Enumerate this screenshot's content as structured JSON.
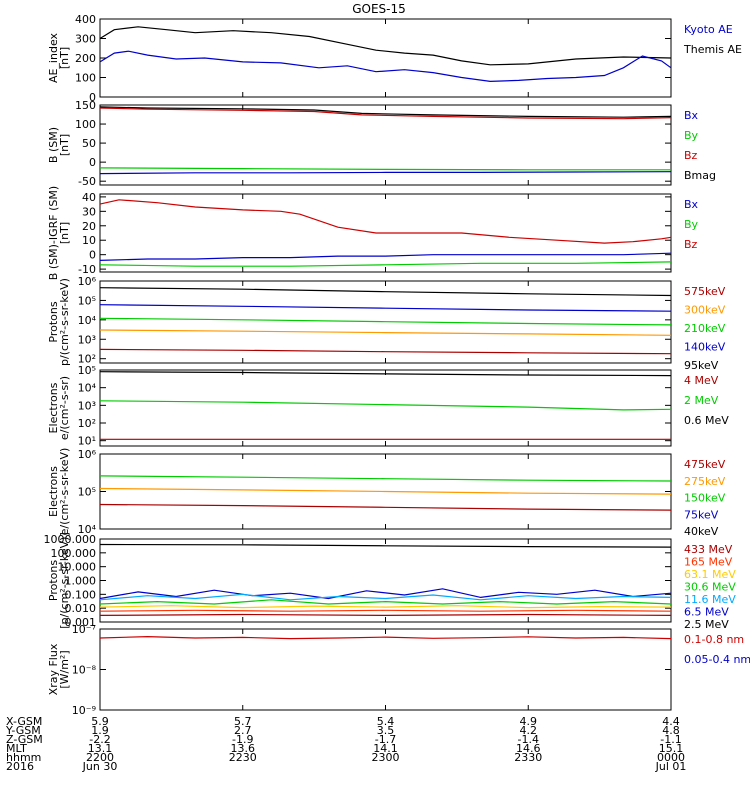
{
  "title": "GOES-15",
  "chart_data": [
    {
      "type": "line",
      "ylabel_lines": [
        "AE_index",
        "[nT]"
      ],
      "ylim": [
        0,
        400
      ],
      "yscale": "linear",
      "yticks": [
        0,
        100,
        200,
        300,
        400
      ],
      "ytick_labels": [
        "0",
        "100",
        "200",
        "300",
        "400"
      ],
      "legend": [
        {
          "label": "Kyoto AE",
          "color": "#0000cc"
        },
        {
          "label": "Themis AE",
          "color": "#000000"
        }
      ],
      "series": [
        {
          "name": "Themis AE",
          "color": "#000000",
          "x": [
            0,
            3,
            8,
            14,
            20,
            28,
            36,
            44,
            52,
            58,
            64,
            70,
            76,
            82,
            90,
            100,
            110,
            120
          ],
          "y": [
            300,
            345,
            360,
            345,
            330,
            340,
            330,
            310,
            270,
            240,
            225,
            215,
            185,
            165,
            170,
            195,
            205,
            200
          ]
        },
        {
          "name": "Kyoto AE",
          "color": "#0000cc",
          "x": [
            0,
            3,
            6,
            10,
            16,
            22,
            30,
            38,
            46,
            52,
            58,
            64,
            70,
            76,
            82,
            88,
            94,
            100,
            106,
            110,
            114,
            118,
            120
          ],
          "y": [
            180,
            225,
            235,
            215,
            195,
            200,
            180,
            175,
            150,
            160,
            130,
            140,
            125,
            100,
            80,
            85,
            95,
            100,
            110,
            150,
            210,
            185,
            150
          ]
        }
      ]
    },
    {
      "type": "line",
      "ylabel_lines": [
        "B (SM)",
        "[nT]"
      ],
      "ylim": [
        -60,
        150
      ],
      "yscale": "linear",
      "yticks": [
        -50,
        0,
        50,
        100,
        150
      ],
      "ytick_labels": [
        "-50",
        "0",
        "50",
        "100",
        "150"
      ],
      "legend": [
        {
          "label": "Bx",
          "color": "#0000cc"
        },
        {
          "label": "By",
          "color": "#00cc00"
        },
        {
          "label": "Bz",
          "color": "#cc0000"
        },
        {
          "label": "Bmag",
          "color": "#000000"
        }
      ],
      "series": [
        {
          "name": "Bmag",
          "color": "#000000",
          "x": [
            0,
            10,
            30,
            45,
            55,
            70,
            90,
            110,
            120
          ],
          "y": [
            145,
            142,
            140,
            137,
            128,
            124,
            120,
            118,
            120
          ]
        },
        {
          "name": "Bz",
          "color": "#cc0000",
          "x": [
            0,
            10,
            30,
            45,
            55,
            70,
            90,
            110,
            120
          ],
          "y": [
            142,
            139,
            136,
            133,
            124,
            120,
            116,
            114,
            117
          ]
        },
        {
          "name": "By",
          "color": "#00cc00",
          "x": [
            0,
            30,
            60,
            90,
            120
          ],
          "y": [
            -15,
            -17,
            -19,
            -20,
            -20
          ]
        },
        {
          "name": "Bx",
          "color": "#0000cc",
          "x": [
            0,
            20,
            40,
            60,
            80,
            100,
            120
          ],
          "y": [
            -30,
            -28,
            -28,
            -27,
            -27,
            -26,
            -25
          ]
        }
      ]
    },
    {
      "type": "line",
      "ylabel_lines": [
        "B (SM)-IGRF (SM)",
        "[nT]"
      ],
      "ylim": [
        -12,
        42
      ],
      "yscale": "linear",
      "yticks": [
        -10,
        0,
        10,
        20,
        30,
        40
      ],
      "ytick_labels": [
        "-10",
        "0",
        "10",
        "20",
        "30",
        "40"
      ],
      "legend": [
        {
          "label": "Bx",
          "color": "#0000cc"
        },
        {
          "label": "By",
          "color": "#00cc00"
        },
        {
          "label": "Bz",
          "color": "#cc0000"
        }
      ],
      "series": [
        {
          "name": "Bz",
          "color": "#cc0000",
          "x": [
            0,
            4,
            12,
            20,
            30,
            38,
            42,
            50,
            58,
            66,
            76,
            86,
            96,
            106,
            112,
            118,
            120
          ],
          "y": [
            35,
            38,
            36,
            33,
            31,
            30,
            28,
            19,
            15,
            15,
            15,
            12,
            10,
            8,
            9,
            11,
            12
          ]
        },
        {
          "name": "Bx",
          "color": "#0000cc",
          "x": [
            0,
            10,
            20,
            30,
            40,
            50,
            60,
            70,
            80,
            90,
            100,
            110,
            120
          ],
          "y": [
            -4,
            -3,
            -3,
            -2,
            -2,
            -1,
            -1,
            0,
            0,
            0,
            0,
            0,
            1
          ]
        },
        {
          "name": "By",
          "color": "#00cc00",
          "x": [
            0,
            20,
            40,
            60,
            80,
            100,
            120
          ],
          "y": [
            -7,
            -8,
            -8,
            -7,
            -6,
            -6,
            -5
          ]
        }
      ]
    },
    {
      "type": "line",
      "ylabel_lines": [
        "Protons",
        "p/(cm²-s-sr-keV)"
      ],
      "ylim": [
        60,
        1000000
      ],
      "yscale": "log",
      "yticks": [
        100,
        1000,
        10000,
        100000,
        1000000
      ],
      "ytick_labels": [
        "10²",
        "10³",
        "10⁴",
        "10⁵",
        "10⁶"
      ],
      "legend": [
        {
          "label": "575keV",
          "color": "#aa0000"
        },
        {
          "label": "300keV",
          "color": "#ff9900"
        },
        {
          "label": "210keV",
          "color": "#00cc00"
        },
        {
          "label": "140keV",
          "color": "#0000cc"
        },
        {
          "label": "95keV",
          "color": "#000000"
        }
      ],
      "series": [
        {
          "name": "95keV",
          "color": "#000000",
          "x": [
            0,
            30,
            60,
            90,
            120
          ],
          "y": [
            450000,
            380000,
            280000,
            220000,
            180000
          ]
        },
        {
          "name": "140keV",
          "color": "#0000cc",
          "x": [
            0,
            30,
            60,
            90,
            120
          ],
          "y": [
            60000,
            50000,
            40000,
            32000,
            28000
          ]
        },
        {
          "name": "210keV",
          "color": "#00cc00",
          "x": [
            0,
            30,
            60,
            90,
            120
          ],
          "y": [
            12000,
            10000,
            8000,
            6500,
            5500
          ]
        },
        {
          "name": "300keV",
          "color": "#ff9900",
          "x": [
            0,
            30,
            60,
            90,
            120
          ],
          "y": [
            3000,
            2600,
            2200,
            1900,
            1600
          ]
        },
        {
          "name": "575keV",
          "color": "#aa0000",
          "x": [
            0,
            30,
            60,
            90,
            120
          ],
          "y": [
            300,
            270,
            230,
            200,
            180
          ]
        }
      ]
    },
    {
      "type": "line",
      "ylabel_lines": [
        "Electrons",
        "e/(cm²-s-sr)"
      ],
      "ylim": [
        5,
        100000
      ],
      "yscale": "log",
      "yticks": [
        10,
        100,
        1000,
        10000,
        100000
      ],
      "ytick_labels": [
        "10¹",
        "10²",
        "10³",
        "10⁴",
        "10⁵"
      ],
      "legend": [
        {
          "label": "4 MeV",
          "color": "#aa0000"
        },
        {
          "label": "2 MeV",
          "color": "#00cc00"
        },
        {
          "label": "0.6 MeV",
          "color": "#000000"
        }
      ],
      "series": [
        {
          "name": "0.6 MeV",
          "color": "#000000",
          "x": [
            0,
            30,
            60,
            90,
            120
          ],
          "y": [
            80000,
            72000,
            60000,
            52000,
            48000
          ]
        },
        {
          "name": "2 MeV",
          "color": "#00cc00",
          "x": [
            0,
            30,
            60,
            90,
            110,
            120
          ],
          "y": [
            1800,
            1500,
            1100,
            800,
            550,
            600
          ]
        },
        {
          "name": "4 MeV",
          "color": "#aa0000",
          "x": [
            0,
            20,
            40,
            60,
            80,
            100,
            120
          ],
          "y": [
            12,
            12,
            12,
            12,
            12,
            12,
            12
          ]
        }
      ]
    },
    {
      "type": "line",
      "ylabel_lines": [
        "Electrons",
        "e/(cm²-s-sr-keV)"
      ],
      "ylim": [
        10000,
        1000000
      ],
      "yscale": "log",
      "yticks": [
        10000,
        100000,
        1000000
      ],
      "ytick_labels": [
        "10⁴",
        "10⁵",
        "10⁶"
      ],
      "legend": [
        {
          "label": "475keV",
          "color": "#aa0000"
        },
        {
          "label": "275keV",
          "color": "#ff9900"
        },
        {
          "label": "150keV",
          "color": "#00cc00"
        },
        {
          "label": "75keV",
          "color": "#0000cc"
        },
        {
          "label": "40keV",
          "color": "#000000"
        }
      ],
      "series": [
        {
          "name": "150keV",
          "color": "#00cc00",
          "x": [
            0,
            30,
            60,
            90,
            120
          ],
          "y": [
            260000,
            240000,
            220000,
            200000,
            190000
          ]
        },
        {
          "name": "275keV",
          "color": "#ff9900",
          "x": [
            0,
            30,
            60,
            90,
            120
          ],
          "y": [
            120000,
            110000,
            100000,
            90000,
            85000
          ]
        },
        {
          "name": "475keV",
          "color": "#aa0000",
          "x": [
            0,
            30,
            60,
            90,
            120
          ],
          "y": [
            45000,
            42000,
            38000,
            34000,
            32000
          ]
        }
      ]
    },
    {
      "type": "line",
      "ylabel_lines": [
        "Protons",
        "[p/(cm²-s-sr-keV)]"
      ],
      "ylim": [
        0.001,
        1000
      ],
      "yscale": "log",
      "yticks": [
        0.001,
        0.01,
        0.1,
        1,
        10,
        100,
        1000
      ],
      "ytick_labels": [
        "0.001",
        "0.010",
        "0.100",
        "1.000",
        "10.000",
        "100.000",
        "1000.000"
      ],
      "legend": [
        {
          "label": "433 MeV",
          "color": "#aa0000"
        },
        {
          "label": "165 MeV",
          "color": "#ff3300"
        },
        {
          "label": "63.1 MeV",
          "color": "#ffcc00"
        },
        {
          "label": "30.6 MeV",
          "color": "#00cc00"
        },
        {
          "label": "11.6 MeV",
          "color": "#00aaff"
        },
        {
          "label": "6.5 MeV",
          "color": "#0000cc"
        },
        {
          "label": "2.5 MeV",
          "color": "#000000"
        }
      ],
      "series": [
        {
          "name": "2.5 MeV",
          "color": "#000000",
          "x": [
            0,
            30,
            60,
            90,
            120
          ],
          "y": [
            400,
            380,
            320,
            280,
            260
          ]
        },
        {
          "name": "6.5 MeV",
          "color": "#0000cc",
          "x": [
            0,
            8,
            16,
            24,
            32,
            40,
            48,
            56,
            64,
            72,
            80,
            88,
            96,
            104,
            112,
            120
          ],
          "y": [
            0.05,
            0.15,
            0.07,
            0.2,
            0.08,
            0.12,
            0.05,
            0.18,
            0.09,
            0.25,
            0.06,
            0.14,
            0.1,
            0.2,
            0.07,
            0.12
          ]
        },
        {
          "name": "11.6 MeV",
          "color": "#00aaff",
          "x": [
            0,
            10,
            20,
            30,
            40,
            50,
            60,
            70,
            80,
            90,
            100,
            110,
            120
          ],
          "y": [
            0.04,
            0.08,
            0.05,
            0.1,
            0.04,
            0.07,
            0.05,
            0.09,
            0.04,
            0.08,
            0.05,
            0.07,
            0.06
          ]
        },
        {
          "name": "30.6 MeV",
          "color": "#00cc00",
          "x": [
            0,
            12,
            24,
            36,
            48,
            60,
            72,
            84,
            96,
            108,
            120
          ],
          "y": [
            0.02,
            0.03,
            0.02,
            0.04,
            0.02,
            0.03,
            0.02,
            0.03,
            0.02,
            0.03,
            0.02
          ]
        },
        {
          "name": "63.1 MeV",
          "color": "#ffcc00",
          "x": [
            0,
            15,
            30,
            45,
            60,
            75,
            90,
            105,
            120
          ],
          "y": [
            0.012,
            0.015,
            0.011,
            0.014,
            0.012,
            0.015,
            0.011,
            0.013,
            0.012
          ]
        },
        {
          "name": "165 MeV",
          "color": "#ff3300",
          "x": [
            0,
            20,
            40,
            60,
            80,
            100,
            120
          ],
          "y": [
            0.006,
            0.007,
            0.006,
            0.007,
            0.006,
            0.007,
            0.006
          ]
        },
        {
          "name": "433 MeV",
          "color": "#aa0000",
          "x": [
            0,
            30,
            60,
            90,
            120
          ],
          "y": [
            0.003,
            0.0035,
            0.003,
            0.0035,
            0.003
          ]
        }
      ]
    },
    {
      "type": "line",
      "ylabel_lines": [
        "Xray Flux",
        "[W/m²]"
      ],
      "ylim": [
        1e-09,
        1e-07
      ],
      "yscale": "log",
      "yticks": [
        1e-09,
        1e-08,
        1e-07
      ],
      "ytick_labels": [
        "10⁻⁹",
        "10⁻⁸",
        "10⁻⁷"
      ],
      "legend": [
        {
          "label": "0.1-0.8 nm",
          "color": "#cc0000"
        },
        {
          "label": "0.05-0.4 nm",
          "color": "#0000cc"
        }
      ],
      "series": [
        {
          "name": "0.1-0.8 nm",
          "color": "#cc0000",
          "x": [
            0,
            10,
            20,
            30,
            40,
            50,
            60,
            70,
            80,
            90,
            100,
            110,
            120
          ],
          "y": [
            6e-08,
            6.5e-08,
            6e-08,
            6.2e-08,
            5.8e-08,
            6e-08,
            6.3e-08,
            5.9e-08,
            6.1e-08,
            6.4e-08,
            6e-08,
            6.2e-08,
            5.8e-08
          ]
        }
      ]
    }
  ],
  "ephemeris": {
    "row_labels": [
      "X-GSM",
      "Y-GSM",
      "Z-GSM",
      "MLT",
      "hhmm",
      "2016"
    ],
    "columns": [
      {
        "values": [
          "5.9",
          "1.9",
          "-2.2",
          "13.1",
          "2200",
          "Jun 30"
        ]
      },
      {
        "values": [
          "5.7",
          "2.7",
          "-1.9",
          "13.6",
          "2230",
          ""
        ]
      },
      {
        "values": [
          "5.4",
          "3.5",
          "-1.7",
          "14.1",
          "2300",
          ""
        ]
      },
      {
        "values": [
          "4.9",
          "4.2",
          "-1.4",
          "14.6",
          "2330",
          ""
        ]
      },
      {
        "values": [
          "4.4",
          "4.8",
          "-1.1",
          "15.1",
          "0000",
          "Jul 01"
        ]
      }
    ]
  }
}
